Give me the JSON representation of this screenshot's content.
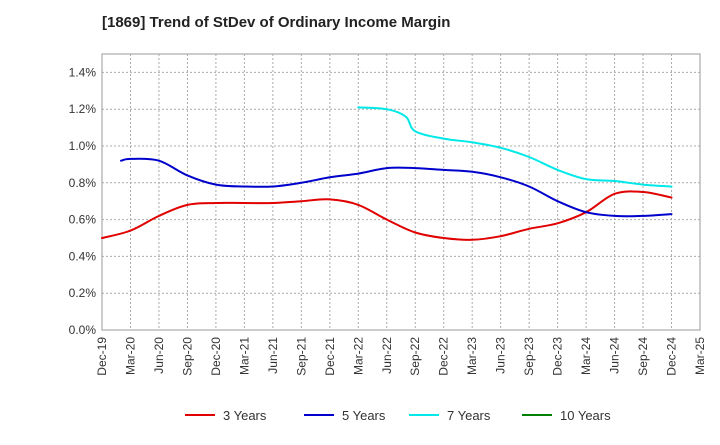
{
  "chart_data": {
    "type": "line",
    "title": "[1869]  Trend of StDev of Ordinary Income Margin",
    "xlabel": "",
    "ylabel": "",
    "x_ticks": [
      "Dec-19",
      "Mar-20",
      "Jun-20",
      "Sep-20",
      "Dec-20",
      "Mar-21",
      "Jun-21",
      "Sep-21",
      "Dec-21",
      "Mar-22",
      "Jun-22",
      "Sep-22",
      "Dec-22",
      "Mar-23",
      "Jun-23",
      "Sep-23",
      "Dec-23",
      "Mar-24",
      "Jun-24",
      "Sep-24",
      "Dec-24",
      "Mar-25"
    ],
    "y_ticks": [
      "0.0%",
      "0.2%",
      "0.4%",
      "0.6%",
      "0.8%",
      "1.0%",
      "1.2%",
      "1.4%"
    ],
    "ylim": [
      0,
      1.5
    ],
    "grid": true,
    "legend_position": "bottom",
    "series": [
      {
        "name": "3 Years",
        "color": "#e00000",
        "points": [
          [
            "Dec-19",
            0.5
          ],
          [
            "Mar-20",
            0.54
          ],
          [
            "Jun-20",
            0.62
          ],
          [
            "Sep-20",
            0.68
          ],
          [
            "Dec-20",
            0.69
          ],
          [
            "Mar-21",
            0.69
          ],
          [
            "Jun-21",
            0.69
          ],
          [
            "Sep-21",
            0.7
          ],
          [
            "Dec-21",
            0.71
          ],
          [
            "Mar-22",
            0.68
          ],
          [
            "Jun-22",
            0.6
          ],
          [
            "Sep-22",
            0.53
          ],
          [
            "Dec-22",
            0.5
          ],
          [
            "Mar-23",
            0.49
          ],
          [
            "Jun-23",
            0.51
          ],
          [
            "Sep-23",
            0.55
          ],
          [
            "Dec-23",
            0.58
          ],
          [
            "Mar-24",
            0.64
          ],
          [
            "Jun-24",
            0.74
          ],
          [
            "Sep-24",
            0.75
          ],
          [
            "Dec-24",
            0.72
          ]
        ]
      },
      {
        "name": "5 Years",
        "color": "#0000cc",
        "points": [
          [
            "Feb-20",
            0.92
          ],
          [
            "Mar-20",
            0.93
          ],
          [
            "Jun-20",
            0.92
          ],
          [
            "Sep-20",
            0.84
          ],
          [
            "Dec-20",
            0.79
          ],
          [
            "Mar-21",
            0.78
          ],
          [
            "Jun-21",
            0.78
          ],
          [
            "Sep-21",
            0.8
          ],
          [
            "Dec-21",
            0.83
          ],
          [
            "Mar-22",
            0.85
          ],
          [
            "Jun-22",
            0.88
          ],
          [
            "Sep-22",
            0.88
          ],
          [
            "Dec-22",
            0.87
          ],
          [
            "Mar-23",
            0.86
          ],
          [
            "Jun-23",
            0.83
          ],
          [
            "Sep-23",
            0.78
          ],
          [
            "Dec-23",
            0.7
          ],
          [
            "Mar-24",
            0.64
          ],
          [
            "Jun-24",
            0.62
          ],
          [
            "Sep-24",
            0.62
          ],
          [
            "Dec-24",
            0.63
          ]
        ]
      },
      {
        "name": "7 Years",
        "color": "#00e8e8",
        "points": [
          [
            "Mar-22",
            1.21
          ],
          [
            "Jun-22",
            1.2
          ],
          [
            "Aug-22",
            1.16
          ],
          [
            "Sep-22",
            1.08
          ],
          [
            "Dec-22",
            1.04
          ],
          [
            "Mar-23",
            1.02
          ],
          [
            "Jun-23",
            0.99
          ],
          [
            "Sep-23",
            0.94
          ],
          [
            "Dec-23",
            0.87
          ],
          [
            "Mar-24",
            0.82
          ],
          [
            "Jun-24",
            0.81
          ],
          [
            "Sep-24",
            0.79
          ],
          [
            "Dec-24",
            0.78
          ]
        ]
      },
      {
        "name": "10 Years",
        "color": "#008000",
        "points": []
      }
    ]
  }
}
